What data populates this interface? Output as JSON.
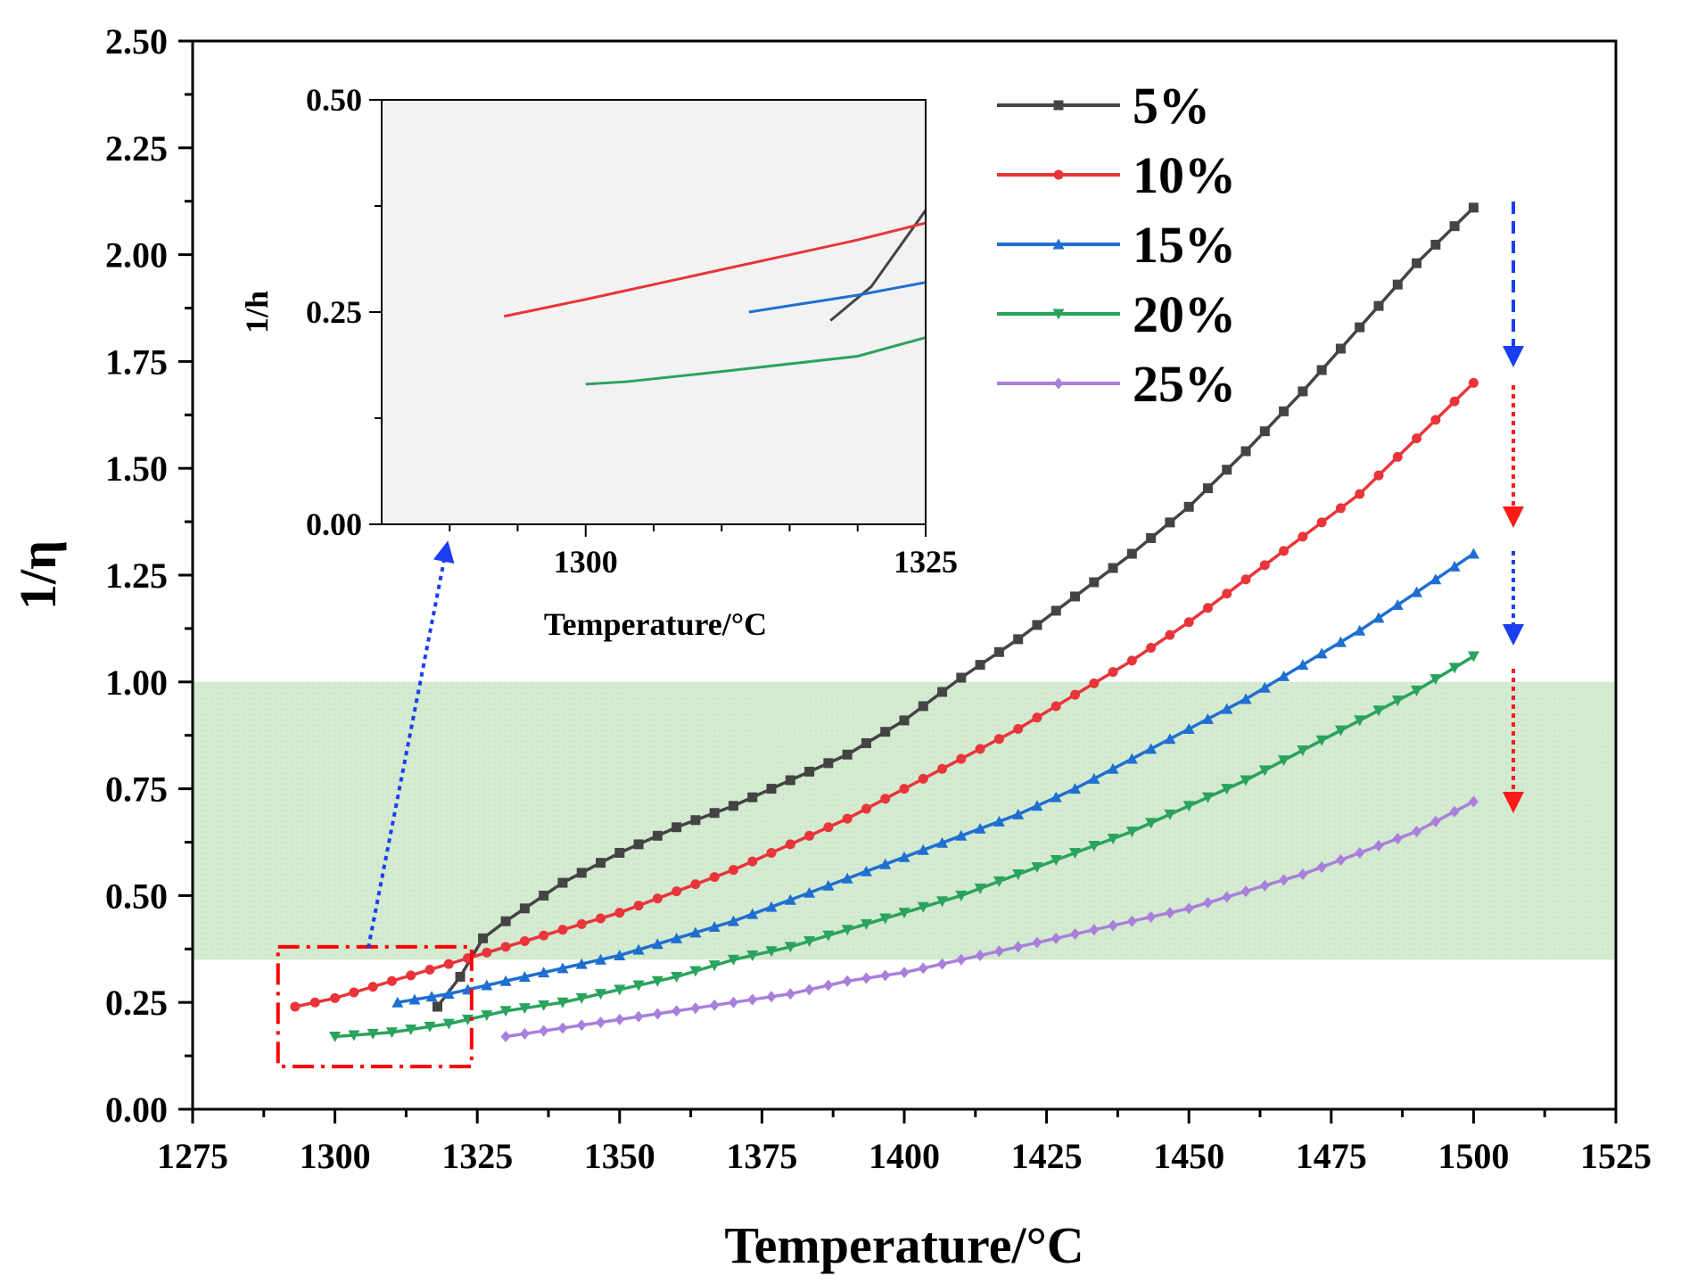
{
  "chart_data": [
    {
      "type": "line",
      "title": "",
      "xlabel": "Temperature/°C",
      "ylabel": "1/η",
      "xlim": [
        1275,
        1525
      ],
      "ylim": [
        0,
        2.5
      ],
      "x_ticks": [
        "1275",
        "1300",
        "1325",
        "1350",
        "1375",
        "1400",
        "1425",
        "1450",
        "1475",
        "1500",
        "1525"
      ],
      "y_ticks": [
        "0.00",
        "0.25",
        "0.50",
        "0.75",
        "1.00",
        "1.25",
        "1.50",
        "1.75",
        "2.00",
        "2.25",
        "2.50"
      ],
      "shaded_band": {
        "y_from": 0.35,
        "y_to": 1.0,
        "color": "#cfe8cc"
      },
      "highlight_box": {
        "x_from": 1290,
        "x_to": 1324,
        "y_from": 0.1,
        "y_to": 0.38,
        "color": "#ff0000"
      },
      "legend": {
        "position": "top-center"
      },
      "series": [
        {
          "name": "5%",
          "color": "#444444",
          "marker": "square",
          "x": [
            1318,
            1322,
            1326,
            1330,
            1340,
            1350,
            1360,
            1370,
            1380,
            1390,
            1400,
            1410,
            1420,
            1430,
            1440,
            1450,
            1460,
            1470,
            1480,
            1490,
            1500
          ],
          "y": [
            0.24,
            0.31,
            0.4,
            0.44,
            0.53,
            0.6,
            0.66,
            0.71,
            0.77,
            0.83,
            0.91,
            1.01,
            1.1,
            1.2,
            1.3,
            1.41,
            1.54,
            1.68,
            1.83,
            1.98,
            2.11
          ]
        },
        {
          "name": "10%",
          "color": "#e8353a",
          "marker": "circle",
          "x": [
            1293,
            1300,
            1310,
            1320,
            1330,
            1340,
            1350,
            1360,
            1370,
            1380,
            1390,
            1400,
            1410,
            1420,
            1430,
            1440,
            1450,
            1460,
            1470,
            1480,
            1490,
            1500
          ],
          "y": [
            0.24,
            0.26,
            0.3,
            0.34,
            0.38,
            0.42,
            0.46,
            0.51,
            0.56,
            0.62,
            0.68,
            0.75,
            0.82,
            0.89,
            0.97,
            1.05,
            1.14,
            1.24,
            1.34,
            1.44,
            1.57,
            1.7
          ]
        },
        {
          "name": "15%",
          "color": "#1f6fd1",
          "marker": "triangle-up",
          "x": [
            1311,
            1320,
            1330,
            1340,
            1350,
            1360,
            1370,
            1380,
            1390,
            1400,
            1410,
            1420,
            1430,
            1440,
            1450,
            1460,
            1470,
            1480,
            1490,
            1500
          ],
          "y": [
            0.25,
            0.27,
            0.3,
            0.33,
            0.36,
            0.4,
            0.44,
            0.49,
            0.54,
            0.59,
            0.64,
            0.69,
            0.75,
            0.82,
            0.89,
            0.96,
            1.04,
            1.12,
            1.21,
            1.3
          ]
        },
        {
          "name": "20%",
          "color": "#2aa35c",
          "marker": "triangle-down",
          "x": [
            1300,
            1310,
            1320,
            1330,
            1340,
            1350,
            1360,
            1370,
            1380,
            1390,
            1400,
            1410,
            1420,
            1430,
            1440,
            1450,
            1460,
            1470,
            1480,
            1490,
            1500
          ],
          "y": [
            0.17,
            0.18,
            0.2,
            0.23,
            0.25,
            0.28,
            0.31,
            0.35,
            0.38,
            0.42,
            0.46,
            0.5,
            0.55,
            0.6,
            0.65,
            0.71,
            0.77,
            0.84,
            0.91,
            0.98,
            1.06
          ]
        },
        {
          "name": "25%",
          "color": "#a97fdb",
          "marker": "diamond",
          "x": [
            1330,
            1340,
            1350,
            1360,
            1370,
            1380,
            1390,
            1400,
            1410,
            1420,
            1430,
            1440,
            1450,
            1460,
            1470,
            1480,
            1490,
            1500
          ],
          "y": [
            0.17,
            0.19,
            0.21,
            0.23,
            0.25,
            0.27,
            0.3,
            0.32,
            0.35,
            0.38,
            0.41,
            0.44,
            0.47,
            0.51,
            0.55,
            0.6,
            0.65,
            0.72
          ]
        }
      ]
    },
    {
      "type": "line",
      "title": "",
      "xlabel": "Temperature/°C",
      "ylabel": "1/h",
      "xlim": [
        1285,
        1325
      ],
      "ylim": [
        0,
        0.5
      ],
      "x_ticks": [
        "1300",
        "1325"
      ],
      "y_ticks": [
        "0.00",
        "0.25",
        "0.50"
      ],
      "series": [
        {
          "name": "5%",
          "color": "#444444",
          "x": [
            1318,
            1321,
            1325
          ],
          "y": [
            0.24,
            0.28,
            0.37
          ]
        },
        {
          "name": "10%",
          "color": "#e8353a",
          "x": [
            1294,
            1300,
            1310,
            1320,
            1325
          ],
          "y": [
            0.245,
            0.265,
            0.3,
            0.335,
            0.355
          ]
        },
        {
          "name": "15%",
          "color": "#1f6fd1",
          "x": [
            1312,
            1320,
            1325
          ],
          "y": [
            0.25,
            0.27,
            0.285
          ]
        },
        {
          "name": "20%",
          "color": "#2aa35c",
          "x": [
            1300,
            1303,
            1310,
            1320,
            1325
          ],
          "y": [
            0.165,
            0.168,
            0.18,
            0.198,
            0.22
          ]
        }
      ]
    }
  ],
  "colors": {
    "arrow_blue": "#1a3ff0",
    "arrow_red": "#ff1a1a"
  }
}
